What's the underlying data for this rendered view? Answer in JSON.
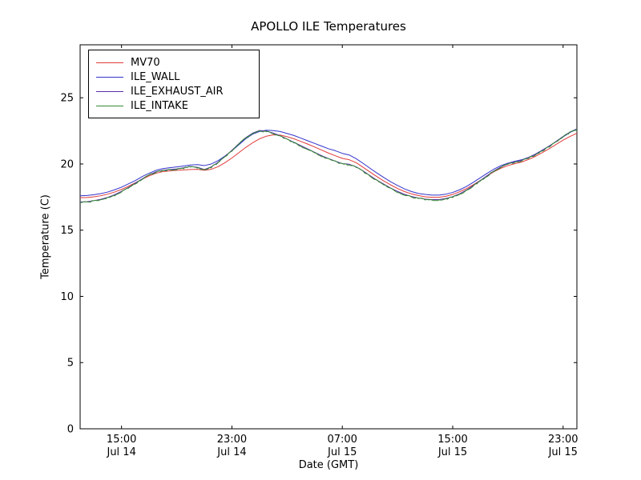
{
  "figure": {
    "title": "APOLLO ILE Temperatures"
  },
  "chart_data": {
    "type": "line",
    "title": "APOLLO ILE Temperatures",
    "xlabel": "Date (GMT)",
    "ylabel": "Temperature (C)",
    "x_encoding": "hours from start of visible window (window begins ~12:00 Jul 14)",
    "xlim": [
      0,
      36
    ],
    "ylim": [
      0,
      29
    ],
    "yticks": [
      0,
      5,
      10,
      15,
      20,
      25
    ],
    "xticks": [
      {
        "pos": 3,
        "line1": "15:00",
        "line2": "Jul 14"
      },
      {
        "pos": 11,
        "line1": "23:00",
        "line2": "Jul 14"
      },
      {
        "pos": 19,
        "line1": "07:00",
        "line2": "Jul 15"
      },
      {
        "pos": 27,
        "line1": "15:00",
        "line2": "Jul 15"
      },
      {
        "pos": 35,
        "line1": "23:00",
        "line2": "Jul 15"
      }
    ],
    "x_start": 0,
    "x_step": 0.5,
    "grid": false,
    "legend_position": "upper left",
    "series": [
      {
        "name": "MV70",
        "color": "#e03a3a",
        "jitter": 0,
        "values": [
          17.45,
          17.47,
          17.52,
          17.6,
          17.72,
          17.88,
          18.08,
          18.32,
          18.58,
          18.85,
          19.1,
          19.3,
          19.42,
          19.48,
          19.52,
          19.55,
          19.58,
          19.6,
          19.52,
          19.6,
          19.8,
          20.1,
          20.45,
          20.85,
          21.25,
          21.6,
          21.9,
          22.1,
          22.2,
          22.18,
          22.06,
          21.9,
          21.7,
          21.5,
          21.28,
          21.05,
          20.82,
          20.62,
          20.42,
          20.32,
          20.1,
          19.75,
          19.4,
          19.05,
          18.72,
          18.42,
          18.15,
          17.92,
          17.75,
          17.62,
          17.52,
          17.48,
          17.48,
          17.56,
          17.7,
          17.9,
          18.14,
          18.44,
          18.76,
          19.1,
          19.42,
          19.68,
          19.88,
          20.02,
          20.15,
          20.34,
          20.58,
          20.86,
          21.16,
          21.48,
          21.8,
          22.08,
          22.32
        ]
      },
      {
        "name": "ILE_WALL",
        "color": "#3333cc",
        "jitter": 0,
        "values": [
          17.6,
          17.62,
          17.68,
          17.76,
          17.88,
          18.05,
          18.25,
          18.5,
          18.75,
          19.05,
          19.3,
          19.52,
          19.65,
          19.72,
          19.78,
          19.85,
          19.92,
          19.95,
          19.88,
          20.0,
          20.25,
          20.6,
          21.0,
          21.45,
          21.9,
          22.25,
          22.45,
          22.55,
          22.52,
          22.45,
          22.3,
          22.15,
          21.95,
          21.75,
          21.55,
          21.35,
          21.15,
          21.0,
          20.8,
          20.68,
          20.4,
          20.05,
          19.68,
          19.32,
          18.98,
          18.66,
          18.38,
          18.12,
          17.92,
          17.78,
          17.7,
          17.65,
          17.65,
          17.72,
          17.85,
          18.05,
          18.3,
          18.62,
          18.96,
          19.3,
          19.62,
          19.88,
          20.06,
          20.2,
          20.32,
          20.5,
          20.75,
          21.05,
          21.36,
          21.7,
          22.05,
          22.38,
          22.62
        ]
      },
      {
        "name": "ILE_EXHAUST_AIR",
        "color": "#5a2ea6",
        "jitter": 0,
        "values": [
          17.13,
          17.15,
          17.23,
          17.33,
          17.48,
          17.68,
          17.93,
          18.23,
          18.55,
          18.88,
          19.18,
          19.41,
          19.53,
          19.58,
          19.63,
          19.71,
          19.81,
          19.75,
          19.58,
          19.78,
          20.13,
          20.58,
          21.03,
          21.53,
          21.98,
          22.33,
          22.53,
          22.48,
          22.33,
          22.13,
          21.88,
          21.63,
          21.38,
          21.13,
          20.88,
          20.63,
          20.41,
          20.21,
          20.03,
          19.98,
          19.78,
          19.48,
          19.13,
          18.78,
          18.48,
          18.18,
          17.93,
          17.71,
          17.55,
          17.43,
          17.35,
          17.31,
          17.31,
          17.39,
          17.53,
          17.75,
          18.03,
          18.38,
          18.75,
          19.13,
          19.48,
          19.78,
          20.01,
          20.15,
          20.28,
          20.48,
          20.73,
          21.03,
          21.35,
          21.71,
          22.08,
          22.41,
          22.65
        ]
      },
      {
        "name": "ILE_INTAKE",
        "color": "#338a33",
        "jitter": 0.06,
        "values": [
          17.1,
          17.12,
          17.2,
          17.3,
          17.45,
          17.65,
          17.9,
          18.2,
          18.52,
          18.85,
          19.15,
          19.38,
          19.5,
          19.55,
          19.6,
          19.68,
          19.78,
          19.72,
          19.55,
          19.75,
          20.1,
          20.55,
          21.0,
          21.5,
          21.95,
          22.3,
          22.5,
          22.45,
          22.3,
          22.1,
          21.85,
          21.6,
          21.35,
          21.1,
          20.85,
          20.6,
          20.38,
          20.18,
          20.0,
          19.95,
          19.75,
          19.45,
          19.1,
          18.75,
          18.45,
          18.15,
          17.9,
          17.68,
          17.52,
          17.4,
          17.32,
          17.28,
          17.28,
          17.36,
          17.5,
          17.72,
          18.0,
          18.35,
          18.72,
          19.1,
          19.45,
          19.75,
          19.98,
          20.12,
          20.25,
          20.45,
          20.7,
          21.0,
          21.32,
          21.68,
          22.05,
          22.38,
          22.62
        ]
      }
    ]
  }
}
